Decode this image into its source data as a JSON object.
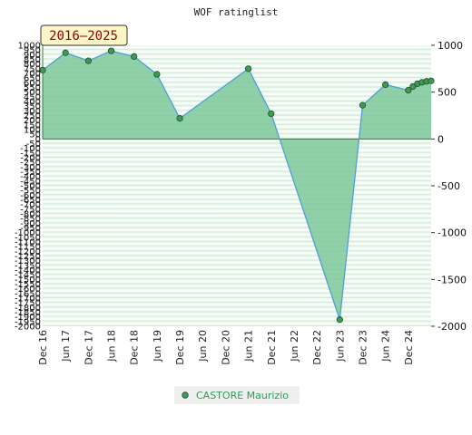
{
  "chart_data": {
    "type": "area",
    "title": "WOF ratinglist",
    "badge": "2016–2025",
    "xlabel": "",
    "ylabel": "",
    "ylim": [
      -2000,
      1000
    ],
    "grid": true,
    "legend_position": "bottom-center",
    "left_ticks": [
      1000,
      950,
      900,
      850,
      800,
      750,
      700,
      650,
      600,
      550,
      500,
      450,
      400,
      350,
      300,
      250,
      200,
      150,
      100,
      50,
      0,
      -50,
      -100,
      -150,
      -200,
      -250,
      -300,
      -350,
      -400,
      -450,
      -500,
      -550,
      -600,
      -650,
      -700,
      -750,
      -800,
      -850,
      -900,
      -950,
      -1000,
      -1050,
      -1100,
      -1150,
      -1200,
      -1250,
      -1300,
      -1350,
      -1400,
      -1450,
      -1500,
      -1550,
      -1600,
      -1650,
      -1700,
      -1750,
      -1800,
      -1850,
      -1900,
      -1950,
      -2000
    ],
    "right_ticks": [
      1000,
      500,
      0,
      -500,
      -1000,
      -1500,
      -2000
    ],
    "categories": [
      "Dec 16",
      "Jun 17",
      "Dec 17",
      "Jun 18",
      "Dec 18",
      "Jun 19",
      "Dec 19",
      "Jun 20",
      "Dec 20",
      "Jun 21",
      "Dec 21",
      "Jun 22",
      "Dec 22",
      "Jun 23",
      "Dec 23",
      "Jun 24",
      "Dec 24"
    ],
    "series": [
      {
        "name": "CASTORE Maurizio",
        "x": [
          0,
          1,
          2,
          3,
          4,
          5,
          6,
          9,
          10,
          13,
          14,
          15,
          16,
          16.2,
          16.4,
          16.6,
          16.8,
          17
        ],
        "values": [
          735,
          920,
          835,
          940,
          880,
          690,
          220,
          750,
          270,
          -1930,
          360,
          580,
          520,
          560,
          590,
          605,
          615,
          620
        ]
      }
    ],
    "colors": {
      "fill": "#7ec89a",
      "line": "#4f9fd6",
      "marker": "#3e9a55",
      "band_light": "#e9f6ec",
      "band_dark": "#c7e8cf",
      "badge_bg": "#fdf7c8"
    }
  }
}
